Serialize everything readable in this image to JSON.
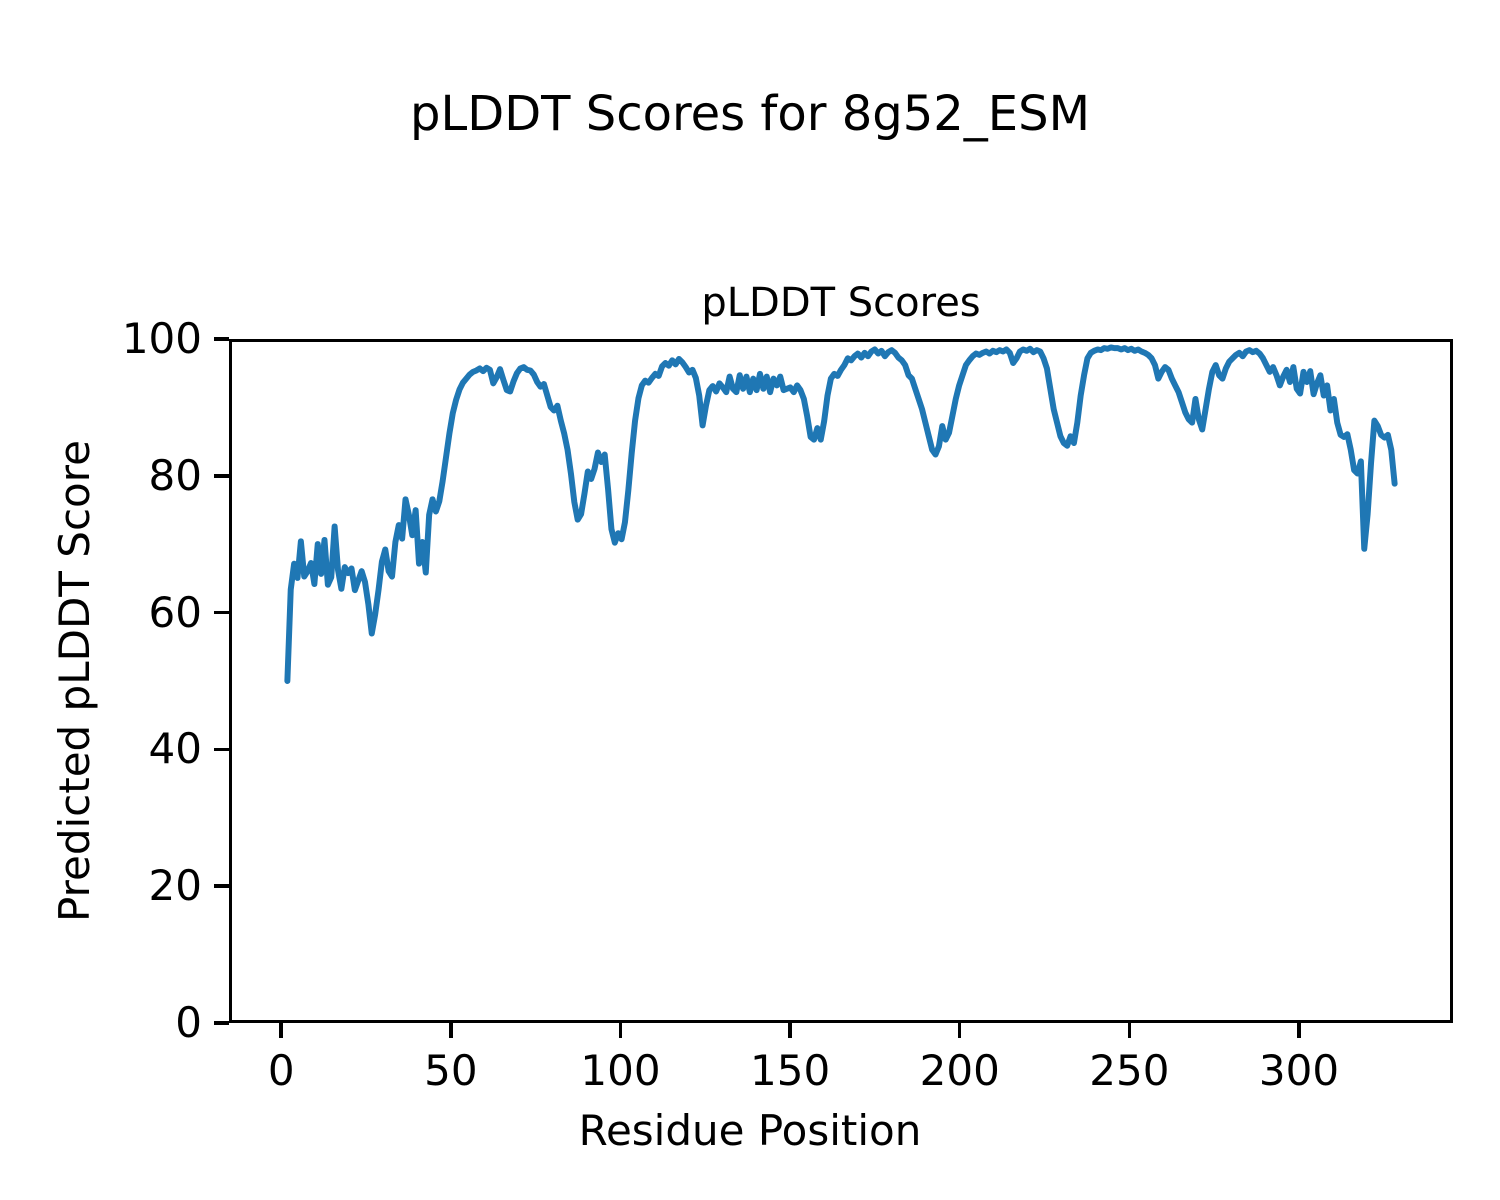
{
  "figure": {
    "suptitle": "pLDDT Scores for 8g52_ESM"
  },
  "chart_data": {
    "type": "line",
    "title": "pLDDT Scores",
    "xlabel": "Residue Position",
    "ylabel": "Predicted pLDDT Score",
    "xlim": [
      -15.4,
      345.4
    ],
    "ylim": [
      0,
      100
    ],
    "xticks": [
      0,
      50,
      100,
      150,
      200,
      250,
      300
    ],
    "yticks": [
      0,
      20,
      40,
      60,
      80,
      100
    ],
    "grid": false,
    "legend_position": "none",
    "line_color": "#1f77b4",
    "axis_color": "#000000",
    "series": [
      {
        "name": "pLDDT",
        "x_start": 1,
        "x_step": 1,
        "values": [
          50.0,
          63.5,
          67.3,
          65.2,
          70.6,
          65.4,
          66.2,
          67.4,
          64.3,
          70.2,
          65.8,
          70.8,
          64.2,
          65.3,
          72.8,
          66.4,
          63.6,
          66.8,
          65.9,
          66.6,
          63.4,
          64.8,
          66.2,
          64.6,
          61.3,
          57.0,
          59.8,
          63.4,
          67.6,
          69.4,
          66.2,
          65.4,
          70.5,
          73.0,
          71.0,
          76.8,
          74.5,
          71.5,
          75.2,
          67.3,
          70.5,
          66.0,
          74.5,
          76.8,
          75.0,
          76.5,
          79.5,
          83.0,
          86.5,
          89.5,
          91.5,
          93.0,
          94.0,
          94.6,
          95.2,
          95.6,
          95.8,
          96.1,
          95.7,
          96.2,
          95.9,
          93.9,
          94.8,
          96.0,
          94.4,
          92.9,
          92.7,
          94.2,
          95.4,
          96.1,
          96.3,
          95.9,
          95.8,
          95.2,
          94.1,
          93.4,
          93.8,
          92.1,
          90.4,
          89.9,
          90.6,
          88.4,
          86.5,
          84.1,
          80.6,
          76.4,
          73.8,
          74.6,
          77.6,
          80.9,
          79.8,
          81.3,
          83.7,
          82.3,
          83.4,
          78.3,
          72.4,
          70.4,
          71.8,
          70.9,
          73.4,
          78.1,
          83.6,
          88.4,
          91.7,
          93.6,
          94.3,
          94.0,
          94.7,
          95.3,
          95.0,
          96.4,
          96.9,
          96.5,
          97.3,
          96.7,
          97.5,
          97.0,
          96.3,
          95.5,
          95.9,
          94.7,
          92.1,
          87.7,
          90.6,
          92.9,
          93.5,
          92.7,
          93.9,
          93.3,
          92.6,
          94.9,
          93.1,
          92.6,
          95.1,
          93.1,
          94.9,
          92.6,
          94.6,
          92.9,
          95.3,
          93.1,
          94.9,
          92.6,
          94.6,
          93.6,
          94.9,
          92.9,
          93.1,
          93.3,
          92.6,
          93.6,
          92.9,
          91.6,
          89.0,
          86.0,
          85.6,
          87.3,
          85.6,
          88.3,
          92.1,
          94.6,
          95.3,
          95.0,
          95.9,
          96.6,
          97.6,
          97.3,
          97.9,
          98.3,
          97.7,
          98.4,
          97.9,
          98.6,
          98.9,
          98.3,
          98.7,
          97.9,
          98.5,
          98.8,
          98.4,
          97.7,
          97.3,
          96.6,
          95.1,
          94.6,
          93.1,
          91.6,
          90.1,
          88.1,
          86.1,
          84.1,
          83.4,
          84.6,
          87.6,
          85.6,
          86.6,
          89.1,
          91.6,
          93.6,
          95.1,
          96.6,
          97.3,
          97.9,
          98.3,
          98.1,
          98.4,
          98.6,
          98.3,
          98.7,
          98.5,
          98.8,
          98.6,
          98.9,
          98.4,
          96.9,
          97.6,
          98.6,
          98.9,
          98.7,
          99.0,
          98.5,
          98.8,
          98.6,
          97.6,
          96.1,
          93.1,
          90.1,
          88.1,
          86.1,
          85.1,
          84.7,
          86.1,
          85.1,
          88.1,
          92.1,
          95.1,
          97.6,
          98.4,
          98.7,
          98.9,
          98.8,
          99.1,
          99.0,
          99.2,
          99.1,
          99.1,
          98.9,
          99.1,
          98.8,
          99.0,
          98.7,
          98.9,
          98.6,
          98.4,
          98.1,
          97.6,
          96.6,
          94.6,
          95.6,
          96.3,
          95.9,
          94.6,
          93.6,
          92.6,
          91.1,
          89.6,
          88.6,
          88.1,
          91.6,
          88.6,
          87.1,
          90.1,
          93.1,
          95.6,
          96.6,
          95.1,
          94.6,
          96.1,
          97.1,
          97.6,
          98.1,
          98.4,
          97.9,
          98.6,
          98.8,
          98.5,
          98.7,
          98.3,
          97.6,
          96.6,
          95.6,
          96.3,
          95.1,
          93.6,
          94.9,
          95.9,
          94.1,
          96.3,
          93.1,
          92.4,
          95.6,
          94.1,
          95.7,
          92.3,
          93.9,
          95.1,
          92.1,
          93.6,
          89.9,
          91.6,
          88.1,
          86.3,
          86.0,
          86.4,
          84.1,
          81.1,
          80.6,
          82.4,
          69.5,
          74.6,
          82.1,
          88.4,
          87.6,
          86.3,
          85.9,
          86.3,
          84.1,
          79.1
        ]
      }
    ]
  }
}
